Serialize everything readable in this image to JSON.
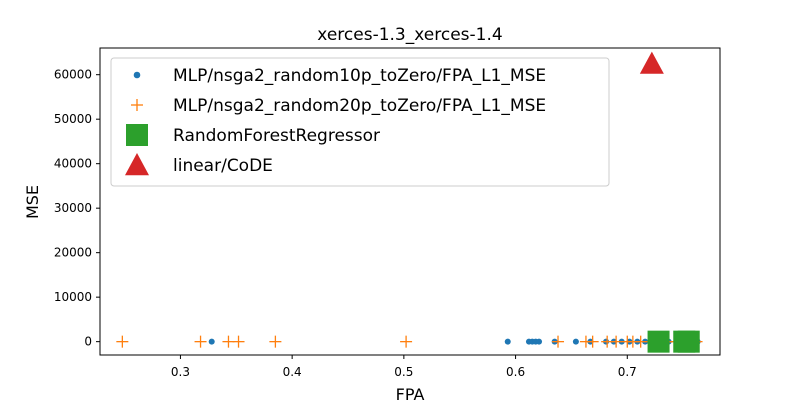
{
  "chart_data": {
    "type": "scatter",
    "title": "xerces-1.3_xerces-1.4",
    "xlabel": "FPA",
    "ylabel": "MSE",
    "xlim": [
      0.228,
      0.783
    ],
    "ylim": [
      -3000,
      66000
    ],
    "xticks": [
      0.3,
      0.4,
      0.5,
      0.6,
      0.7
    ],
    "yticks": [
      0,
      10000,
      20000,
      30000,
      40000,
      50000,
      60000
    ],
    "grid": false,
    "legend_position": "upper-left",
    "series": [
      {
        "name": "MLP/nsga2_random10p_toZero/FPA_L1_MSE",
        "marker": "circle",
        "color": "#1f77b4",
        "points": [
          [
            0.328,
            0
          ],
          [
            0.593,
            0
          ],
          [
            0.612,
            0
          ],
          [
            0.615,
            0
          ],
          [
            0.618,
            0
          ],
          [
            0.621,
            0
          ],
          [
            0.635,
            0
          ],
          [
            0.654,
            0
          ],
          [
            0.667,
            0
          ],
          [
            0.681,
            0
          ],
          [
            0.688,
            0
          ],
          [
            0.695,
            0
          ],
          [
            0.702,
            0
          ],
          [
            0.709,
            0
          ],
          [
            0.716,
            0
          ],
          [
            0.723,
            0
          ],
          [
            0.73,
            0
          ],
          [
            0.737,
            0
          ],
          [
            0.744,
            0
          ],
          [
            0.751,
            0
          ],
          [
            0.758,
            0
          ],
          [
            0.763,
            0
          ]
        ]
      },
      {
        "name": "MLP/nsga2_random20p_toZero/FPA_L1_MSE",
        "marker": "plus",
        "color": "#ff7f0e",
        "points": [
          [
            0.248,
            0
          ],
          [
            0.318,
            0
          ],
          [
            0.343,
            0
          ],
          [
            0.352,
            0
          ],
          [
            0.385,
            0
          ],
          [
            0.502,
            0
          ],
          [
            0.638,
            0
          ],
          [
            0.663,
            0
          ],
          [
            0.669,
            0
          ],
          [
            0.682,
            0
          ],
          [
            0.69,
            0
          ],
          [
            0.7,
            0
          ],
          [
            0.705,
            0
          ],
          [
            0.712,
            0
          ],
          [
            0.72,
            0
          ],
          [
            0.728,
            0
          ],
          [
            0.736,
            0
          ],
          [
            0.742,
            0
          ],
          [
            0.75,
            0
          ],
          [
            0.756,
            0
          ],
          [
            0.762,
            0
          ]
        ]
      },
      {
        "name": "RandomForestRegressor",
        "marker": "square",
        "color": "#2ca02c",
        "points": [
          [
            0.728,
            0
          ],
          [
            0.755,
            0
          ],
          [
            0.751,
            0
          ]
        ]
      },
      {
        "name": "linear/CoDE",
        "marker": "triangle",
        "color": "#d62728",
        "points": [
          [
            0.722,
            62500
          ]
        ]
      }
    ]
  }
}
